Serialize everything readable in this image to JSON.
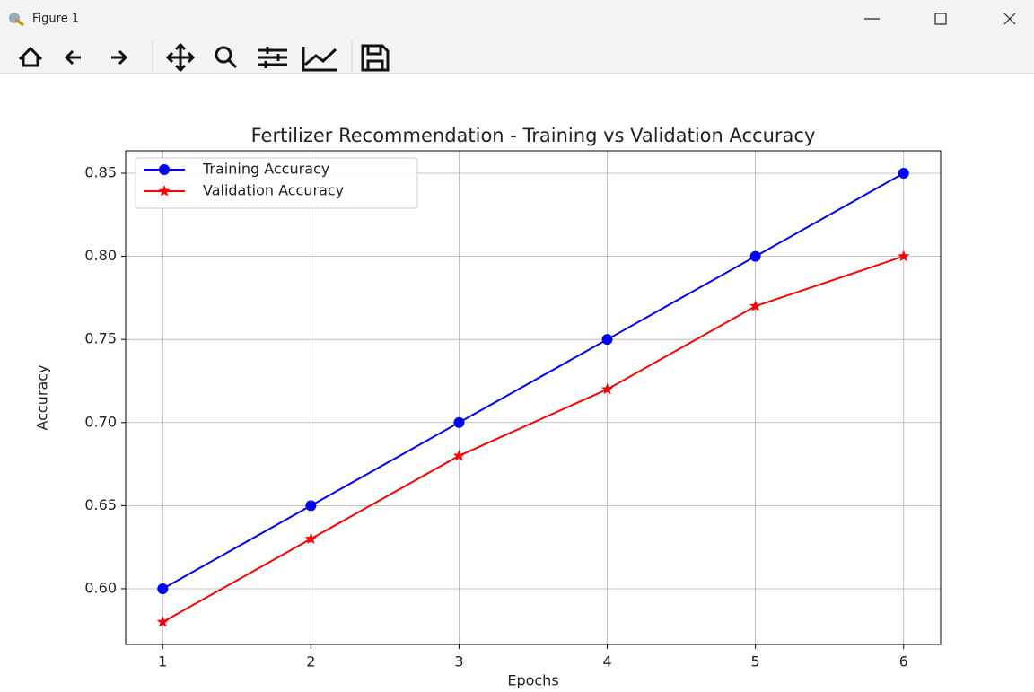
{
  "window": {
    "title": "Figure 1"
  },
  "chart_data": {
    "type": "line",
    "title": "Fertilizer Recommendation - Training vs Validation Accuracy",
    "x_label": "Epochs",
    "y_label": "Accuracy",
    "x": [
      1,
      2,
      3,
      4,
      5,
      6
    ],
    "series": [
      {
        "name": "Training Accuracy",
        "color": "#0000ff",
        "marker": "o",
        "values": [
          0.6,
          0.65,
          0.7,
          0.75,
          0.8,
          0.85
        ]
      },
      {
        "name": "Validation Accuracy",
        "color": "#ff0000",
        "marker": "*",
        "values": [
          0.58,
          0.63,
          0.68,
          0.72,
          0.77,
          0.8
        ]
      }
    ],
    "xlim": [
      0.75,
      6.25
    ],
    "xticks": [
      1,
      2,
      3,
      4,
      5,
      6
    ],
    "ylim": [
      0.5665,
      0.8635
    ],
    "yticks": [
      {
        "value": 0.6,
        "label": "0.60"
      },
      0.65,
      {
        "value": 0.7,
        "label": "0.70"
      },
      0.75,
      {
        "value": 0.8,
        "label": "0.80"
      },
      0.85
    ],
    "grid": true,
    "legend": "upper-left"
  }
}
